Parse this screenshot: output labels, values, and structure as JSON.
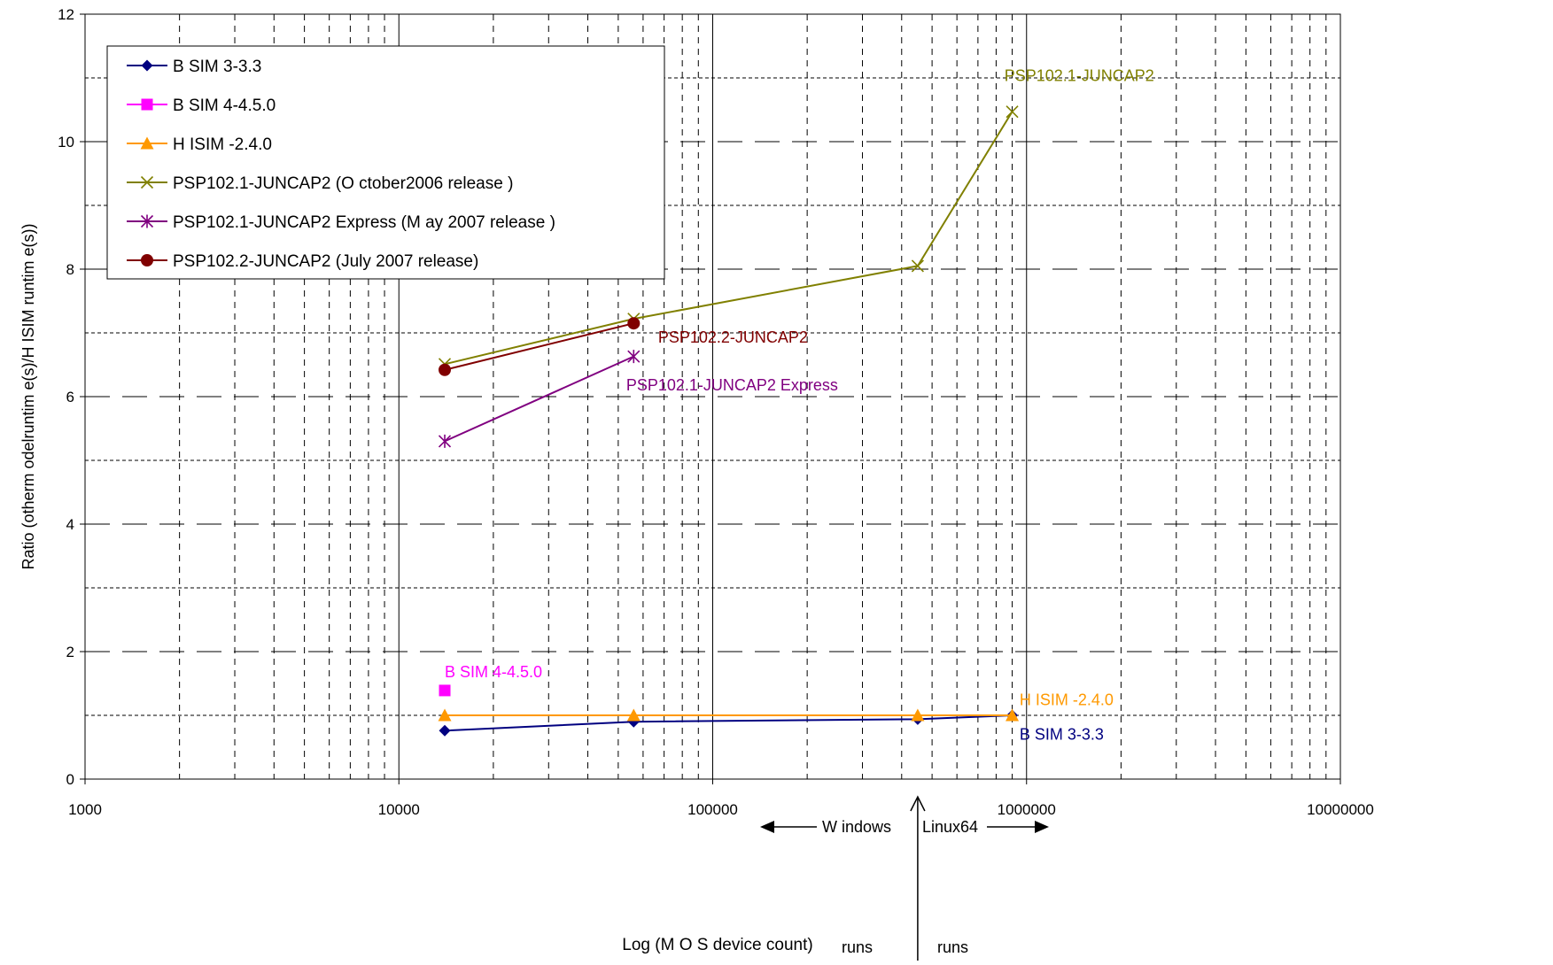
{
  "chart_data": {
    "type": "line",
    "title": "",
    "xlabel": "Log (M O S device count)",
    "ylabel": "Ratio (otherm odelruntim e(s)/H ISIM  runtim e(s))",
    "x_scale": "log",
    "xlim": [
      1000,
      10000000
    ],
    "ylim": [
      0,
      12
    ],
    "x_ticks": [
      1000,
      10000,
      100000,
      1000000,
      10000000
    ],
    "x_tick_labels": [
      "1000",
      "10000",
      "100000",
      "1000000",
      "10000000"
    ],
    "y_ticks": [
      0,
      2,
      4,
      6,
      8,
      10,
      12
    ],
    "y_tick_labels": [
      "0",
      "2",
      "4",
      "6",
      "8",
      "10",
      "12"
    ],
    "grid": true,
    "legend_position": "top-left",
    "series": [
      {
        "name": "B SIM 3-3.3",
        "color": "#000080",
        "marker": "diamond",
        "x": [
          14000,
          56000,
          450000,
          900000
        ],
        "y": [
          0.76,
          0.9,
          0.94,
          1.0
        ],
        "label": "B SIM 3-3.3",
        "label_at": [
          950000,
          0.62
        ]
      },
      {
        "name": "B SIM 4-4.5.0",
        "color": "#FF00FF",
        "marker": "square",
        "x": [
          14000
        ],
        "y": [
          1.39
        ],
        "label": "B SIM 4-4.5.0",
        "label_at": [
          14000,
          1.6
        ]
      },
      {
        "name": "H ISIM -2.4.0",
        "color": "#FF9900",
        "marker": "triangle",
        "x": [
          14000,
          56000,
          450000,
          900000
        ],
        "y": [
          1.0,
          1.0,
          1.0,
          1.0
        ],
        "label": "H ISIM -2.4.0",
        "label_at": [
          950000,
          1.16
        ]
      },
      {
        "name": "PSP102.1-JUNCAP2 (O ctober2006 release )",
        "color": "#808000",
        "marker": "x",
        "x": [
          14000,
          56000,
          450000,
          900000
        ],
        "y": [
          6.51,
          7.22,
          8.05,
          10.47
        ],
        "label": "PSP102.1-JUNCAP2",
        "label_at": [
          850000,
          10.95
        ]
      },
      {
        "name": "PSP102.1-JUNCAP2 Express (M ay 2007 release )",
        "color": "#800080",
        "marker": "asterisk",
        "x": [
          14000,
          56000
        ],
        "y": [
          5.3,
          6.63
        ],
        "label": "PSP102.1-JUNCAP2 Express",
        "label_at": [
          53000,
          6.1
        ]
      },
      {
        "name": "PSP102.2-JUNCAP2 (July 2007 release)",
        "color": "#800000",
        "marker": "circle",
        "x": [
          14000,
          56000
        ],
        "y": [
          6.42,
          7.15
        ],
        "label": "PSP102.2-JUNCAP2",
        "label_at": [
          67000,
          6.85
        ]
      }
    ],
    "annotations": [
      {
        "id": "windows",
        "text": "W indows",
        "text2": "runs"
      },
      {
        "id": "linux",
        "text": "Linux64",
        "text2": "runs"
      }
    ]
  }
}
